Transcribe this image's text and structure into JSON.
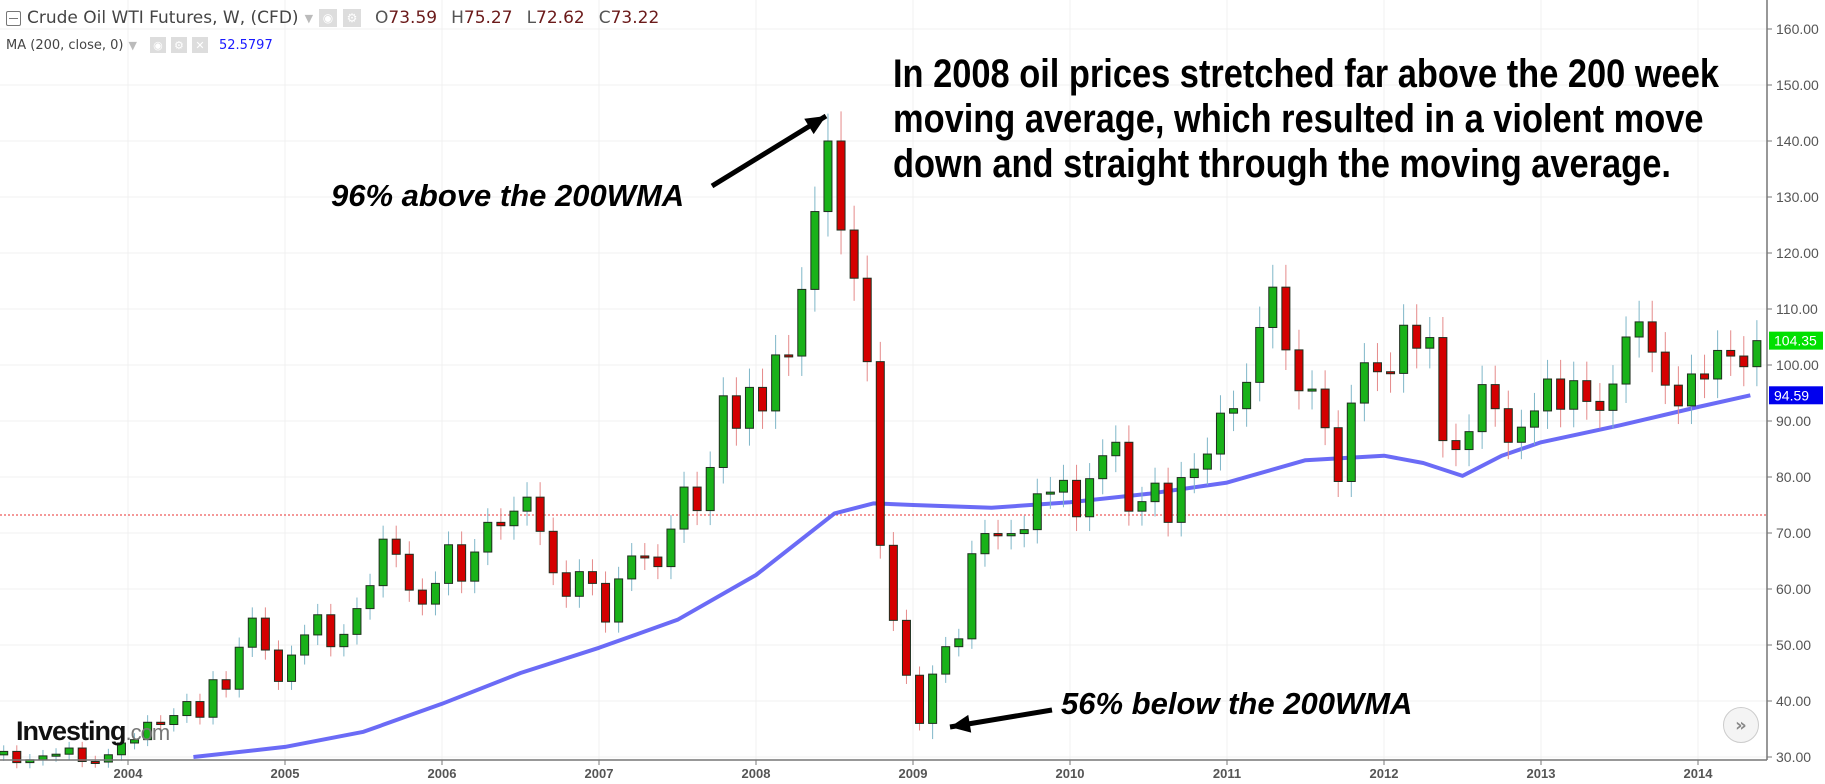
{
  "header": {
    "title": "Crude Oil WTI Futures, W, (CFD)",
    "ohlc": [
      {
        "key": "O",
        "value": "73.59"
      },
      {
        "key": "H",
        "value": "75.27"
      },
      {
        "key": "L",
        "value": "72.62"
      },
      {
        "key": "C",
        "value": "73.22"
      }
    ],
    "indicator": "MA (200, close, 0)",
    "indicator_value": "52.5797"
  },
  "annotations": {
    "main": "In 2008 oil prices stretched far above the 200 week moving average, which resulted in a violent move down and straight through the moving average.",
    "top": "96% above the 200WMA",
    "bottom": "56% below the 200WMA"
  },
  "logo": {
    "name": "Investing",
    "suffix": ".com"
  },
  "colors": {
    "up": "#19b219",
    "down": "#d40000",
    "ma": "#5b5bf5",
    "last_price_tag": "#00e000",
    "ma_tag": "#0000ee",
    "current_line": "#e83030"
  },
  "chart_data": {
    "type": "candlestick",
    "interval": "weekly (shown here as monthly closes)",
    "ylim": [
      30,
      160
    ],
    "yticks": [
      "30.00",
      "40.00",
      "50.00",
      "60.00",
      "70.00",
      "80.00",
      "90.00",
      "100.00",
      "110.00",
      "120.00",
      "130.00",
      "140.00",
      "150.00",
      "160.00"
    ],
    "xticks": [
      "2004",
      "2005",
      "2006",
      "2007",
      "2008",
      "2009",
      "2010",
      "2011",
      "2012",
      "2013",
      "2014"
    ],
    "grid": true,
    "start_month": "2003-03",
    "closes": [
      31,
      29,
      29.5,
      30.2,
      30.5,
      31.6,
      29.2,
      29.1,
      30.4,
      32.5,
      33.1,
      36.2,
      35.8,
      37.4,
      39.9,
      37.1,
      43.8,
      42.1,
      49.6,
      54.8,
      49.1,
      43.5,
      48.2,
      51.8,
      55.4,
      49.7,
      51.9,
      56.5,
      60.6,
      68.9,
      66.2,
      59.8,
      57.3,
      61.0,
      67.9,
      61.4,
      66.6,
      71.9,
      71.3,
      73.9,
      76.4,
      70.3,
      62.9,
      58.7,
      63.1,
      61.0,
      54.1,
      61.8,
      65.9,
      65.7,
      64.0,
      70.7,
      78.2,
      74.0,
      81.7,
      94.5,
      88.7,
      96.0,
      91.8,
      101.8,
      101.6,
      113.5,
      127.4,
      140.0,
      124.1,
      115.5,
      100.6,
      67.8,
      54.4,
      44.6,
      36.0,
      44.8,
      49.7,
      51.1,
      66.3,
      69.9,
      69.5,
      69.9,
      70.6,
      77.0,
      77.3,
      79.4,
      72.9,
      79.7,
      83.8,
      86.2,
      73.9,
      75.6,
      78.9,
      71.9,
      79.9,
      81.4,
      84.1,
      91.4,
      92.2,
      96.9,
      106.7,
      113.9,
      102.7,
      95.4,
      95.7,
      88.8,
      79.2,
      93.2,
      100.4,
      98.8,
      98.5,
      107.1,
      103.0,
      104.9,
      86.5,
      84.9,
      88.1,
      96.5,
      92.2,
      86.2,
      88.9,
      91.8,
      97.5,
      92.1,
      97.2,
      93.5,
      91.9,
      96.6,
      105.0,
      107.7,
      102.3,
      96.4,
      92.7,
      98.4,
      97.5,
      102.6,
      101.6,
      99.7,
      104.35
    ],
    "peak": {
      "date": "2008-07",
      "value": 145.3
    },
    "trough": {
      "date": "2009-02",
      "value": 33.2
    },
    "moving_average": {
      "name": "MA (200, close, 0)",
      "points": [
        [
          "2004-06",
          30
        ],
        [
          "2005-01",
          31.8
        ],
        [
          "2005-07",
          34.5
        ],
        [
          "2006-01",
          39.5
        ],
        [
          "2006-07",
          45
        ],
        [
          "2007-01",
          49.5
        ],
        [
          "2007-07",
          54.5
        ],
        [
          "2008-01",
          62.5
        ],
        [
          "2008-07",
          73.5
        ],
        [
          "2008-10",
          75.3
        ],
        [
          "2009-01",
          75
        ],
        [
          "2009-07",
          74.5
        ],
        [
          "2010-01",
          75.5
        ],
        [
          "2010-07",
          77
        ],
        [
          "2011-01",
          79
        ],
        [
          "2011-07",
          83
        ],
        [
          "2012-01",
          83.8
        ],
        [
          "2012-04",
          82.5
        ],
        [
          "2012-07",
          80.2
        ],
        [
          "2012-10",
          83.8
        ],
        [
          "2013-01",
          86.2
        ],
        [
          "2013-07",
          89.2
        ],
        [
          "2014-01",
          92.5
        ],
        [
          "2014-05",
          94.59
        ]
      ]
    },
    "last_price": "104.35",
    "ma_last": "94.59",
    "current_price_line": 73.22
  }
}
